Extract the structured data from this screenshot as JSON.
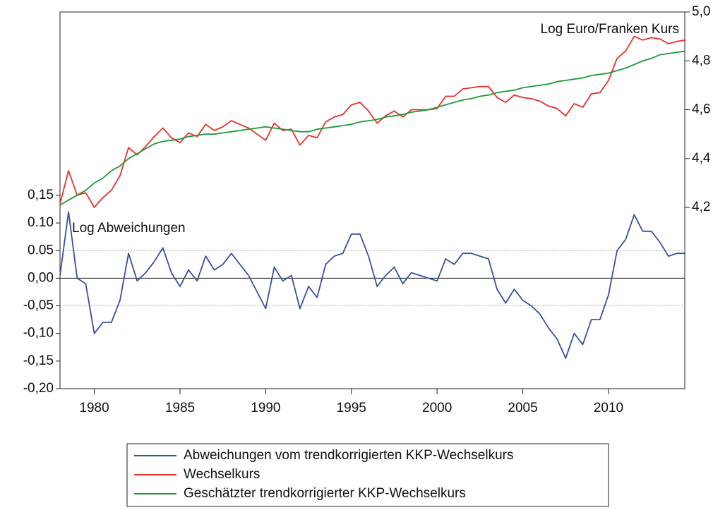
{
  "chart_data": {
    "type": "line",
    "annotations": [
      "Log Euro/Franken Kurs",
      "Log Abweichungen"
    ],
    "x": [
      1978.0,
      1978.5,
      1979.0,
      1979.5,
      1980.0,
      1980.5,
      1981.0,
      1981.5,
      1982.0,
      1982.5,
      1983.0,
      1983.5,
      1984.0,
      1984.5,
      1985.0,
      1985.5,
      1986.0,
      1986.5,
      1987.0,
      1987.5,
      1988.0,
      1988.5,
      1989.0,
      1989.5,
      1990.0,
      1990.5,
      1991.0,
      1991.5,
      1992.0,
      1992.5,
      1993.0,
      1993.5,
      1994.0,
      1994.5,
      1995.0,
      1995.5,
      1996.0,
      1996.5,
      1997.0,
      1997.5,
      1998.0,
      1998.5,
      1999.0,
      1999.5,
      2000.0,
      2000.5,
      2001.0,
      2001.5,
      2002.0,
      2002.5,
      2003.0,
      2003.5,
      2004.0,
      2004.5,
      2005.0,
      2005.5,
      2006.0,
      2006.5,
      2007.0,
      2007.5,
      2008.0,
      2008.5,
      2009.0,
      2009.5,
      2010.0,
      2010.5,
      2011.0,
      2011.5,
      2012.0,
      2012.5,
      2013.0,
      2013.5,
      2014.0,
      2014.5
    ],
    "series": [
      {
        "name": "Abweichungen vom trendkorrigierten KKP-Wechselkurs",
        "color": "#3a4fa0",
        "axis": "y",
        "values": [
          0.005,
          0.12,
          0.0,
          -0.01,
          -0.1,
          -0.08,
          -0.08,
          -0.04,
          0.045,
          -0.005,
          0.01,
          0.03,
          0.055,
          0.01,
          -0.015,
          0.015,
          -0.005,
          0.04,
          0.015,
          0.025,
          0.045,
          0.025,
          0.005,
          -0.025,
          -0.055,
          0.02,
          -0.005,
          0.005,
          -0.055,
          -0.015,
          -0.035,
          0.025,
          0.04,
          0.045,
          0.08,
          0.08,
          0.04,
          -0.015,
          0.005,
          0.02,
          -0.01,
          0.01,
          0.005,
          0.0,
          -0.005,
          0.035,
          0.025,
          0.045,
          0.045,
          0.04,
          0.035,
          -0.02,
          -0.045,
          -0.02,
          -0.04,
          -0.05,
          -0.065,
          -0.09,
          -0.11,
          -0.145,
          -0.1,
          -0.12,
          -0.075,
          -0.075,
          -0.03,
          0.05,
          0.07,
          0.115,
          0.085,
          0.085,
          0.065,
          0.04,
          0.045,
          0.045
        ]
      },
      {
        "name": "Wechselkurs",
        "color": "#e8302c",
        "axis": "y2",
        "values": [
          4.215,
          4.35,
          4.25,
          4.26,
          4.2,
          4.24,
          4.27,
          4.33,
          4.445,
          4.415,
          4.45,
          4.49,
          4.525,
          4.485,
          4.465,
          4.505,
          4.49,
          4.54,
          4.515,
          4.53,
          4.555,
          4.54,
          4.525,
          4.5,
          4.475,
          4.545,
          4.515,
          4.52,
          4.455,
          4.495,
          4.485,
          4.55,
          4.57,
          4.58,
          4.62,
          4.63,
          4.595,
          4.545,
          4.575,
          4.595,
          4.57,
          4.6,
          4.6,
          4.6,
          4.605,
          4.655,
          4.655,
          4.685,
          4.69,
          4.695,
          4.695,
          4.65,
          4.63,
          4.66,
          4.65,
          4.645,
          4.635,
          4.615,
          4.605,
          4.575,
          4.625,
          4.61,
          4.665,
          4.67,
          4.72,
          4.81,
          4.84,
          4.9,
          4.885,
          4.895,
          4.89,
          4.87,
          4.88,
          4.885
        ]
      },
      {
        "name": "Geschätzter trendkorrigierter KKP-Wechselkurs",
        "color": "#1e9a3a",
        "axis": "y2",
        "values": [
          4.21,
          4.23,
          4.25,
          4.27,
          4.3,
          4.32,
          4.35,
          4.37,
          4.4,
          4.42,
          4.44,
          4.46,
          4.47,
          4.475,
          4.48,
          4.49,
          4.495,
          4.5,
          4.5,
          4.505,
          4.51,
          4.515,
          4.52,
          4.525,
          4.53,
          4.525,
          4.52,
          4.515,
          4.51,
          4.51,
          4.52,
          4.525,
          4.53,
          4.535,
          4.54,
          4.55,
          4.555,
          4.56,
          4.57,
          4.575,
          4.58,
          4.59,
          4.595,
          4.6,
          4.61,
          4.62,
          4.63,
          4.64,
          4.645,
          4.655,
          4.66,
          4.67,
          4.675,
          4.68,
          4.69,
          4.695,
          4.7,
          4.705,
          4.715,
          4.72,
          4.725,
          4.73,
          4.74,
          4.745,
          4.75,
          4.76,
          4.77,
          4.785,
          4.8,
          4.81,
          4.825,
          4.83,
          4.835,
          4.84
        ]
      }
    ],
    "xlim": [
      1978,
      2014.45
    ],
    "xticks": [
      1980,
      1985,
      1990,
      1995,
      2000,
      2005,
      2010
    ],
    "ylim": [
      -0.2,
      0.482
    ],
    "yticks": [
      {
        "value": 0.15,
        "label": "0,15"
      },
      {
        "value": 0.1,
        "label": "0.10"
      },
      {
        "value": 0.05,
        "label": "0.05"
      },
      {
        "value": 0,
        "label": "0,00"
      },
      {
        "value": -0.05,
        "label": "-0,05"
      },
      {
        "value": -0.1,
        "label": "-0,10"
      },
      {
        "value": -0.15,
        "label": "-0,15"
      },
      {
        "value": -0.2,
        "label": "-0,20"
      }
    ],
    "y2lim": [
      3.458,
      5.0
    ],
    "y2ticks": [
      {
        "value": 4.2,
        "label": "4,2"
      },
      {
        "value": 4.4,
        "label": "4,4"
      },
      {
        "value": 4.6,
        "label": "4,6"
      },
      {
        "value": 4.8,
        "label": "4,8"
      },
      {
        "value": 5.0,
        "label": "5,0"
      }
    ],
    "grid_lines": [
      0.05,
      -0.05
    ],
    "zero_line": 0,
    "legend": "bottom"
  }
}
